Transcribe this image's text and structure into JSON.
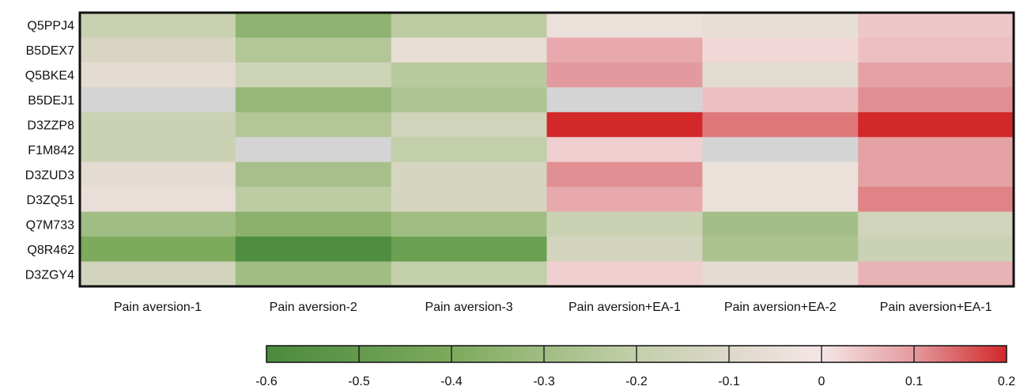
{
  "chart_data": {
    "type": "heatmap",
    "title": "",
    "xlabel": "",
    "ylabel": "",
    "rows": [
      "Q5PPJ4",
      "B5DEX7",
      "Q5BKE4",
      "B5DEJ1",
      "D3ZZP8",
      "F1M842",
      "D3ZUD3",
      "D3ZQ51",
      "Q7M733",
      "Q8R462",
      "D3ZGY4"
    ],
    "columns": [
      "Pain aversion-1",
      "Pain aversion-2",
      "Pain aversion-3",
      "Pain aversion+EA-1",
      "Pain aversion+EA-2",
      "Pain aversion+EA-1"
    ],
    "values": [
      [
        -0.18,
        -0.35,
        -0.22,
        -0.04,
        -0.06,
        0.04
      ],
      [
        -0.12,
        -0.25,
        -0.06,
        0.08,
        0.02,
        0.05
      ],
      [
        -0.07,
        -0.16,
        -0.23,
        0.1,
        -0.08,
        0.09
      ],
      [
        null,
        -0.33,
        -0.26,
        null,
        0.05,
        0.11
      ],
      [
        -0.17,
        -0.25,
        -0.15,
        0.2,
        0.13,
        0.2
      ],
      [
        -0.17,
        null,
        -0.2,
        0.03,
        null,
        0.09
      ],
      [
        -0.07,
        -0.28,
        -0.13,
        0.11,
        -0.04,
        0.09
      ],
      [
        -0.05,
        -0.22,
        -0.13,
        0.08,
        -0.04,
        0.12
      ],
      [
        -0.3,
        -0.36,
        -0.3,
        -0.17,
        -0.29,
        -0.15
      ],
      [
        -0.4,
        -0.58,
        -0.47,
        -0.14,
        -0.27,
        -0.17
      ],
      [
        -0.14,
        -0.3,
        -0.2,
        0.03,
        -0.07,
        0.07
      ]
    ],
    "missing_color": "#d4d4d4",
    "colorbar": {
      "min": -0.6,
      "max": 0.2,
      "ticks": [
        "-0.6",
        "-0.5",
        "-0.4",
        "-0.3",
        "-0.2",
        "-0.1",
        "0",
        "0.1",
        "0.2"
      ],
      "stops": [
        {
          "value": -0.6,
          "color": "#4a8a3e"
        },
        {
          "value": -0.4,
          "color": "#7daa5c"
        },
        {
          "value": -0.2,
          "color": "#c3cfaa"
        },
        {
          "value": -0.1,
          "color": "#ddd8c9"
        },
        {
          "value": 0.0,
          "color": "#f5e6e6"
        },
        {
          "value": 0.1,
          "color": "#e39a9e"
        },
        {
          "value": 0.2,
          "color": "#d2282a"
        }
      ]
    },
    "grid": false,
    "legend": "bottom"
  }
}
